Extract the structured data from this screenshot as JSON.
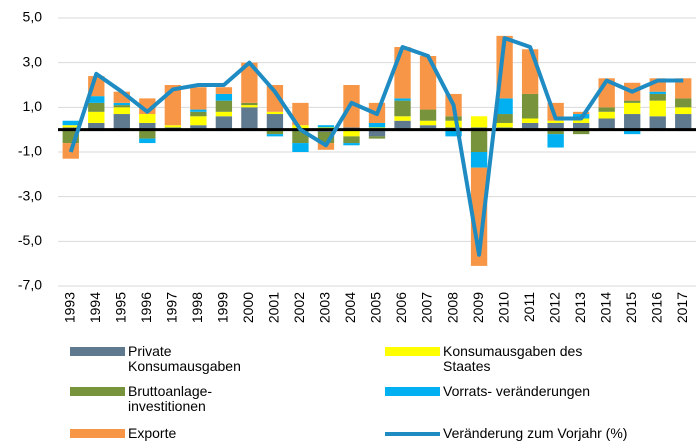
{
  "chart_data": {
    "type": "bar",
    "stacked": true,
    "categories": [
      "1993",
      "1994",
      "1995",
      "1996",
      "1997",
      "1998",
      "1999",
      "2000",
      "2001",
      "2002",
      "2003",
      "2004",
      "2005",
      "2006",
      "2007",
      "2008",
      "2009",
      "2010",
      "2011",
      "2012",
      "2013",
      "2014",
      "2015",
      "2016",
      "2017"
    ],
    "ylim": [
      -7,
      5
    ],
    "yticks": [
      {
        "value": 5,
        "label": "5,0"
      },
      {
        "value": 3,
        "label": "3,0"
      },
      {
        "value": 1,
        "label": "1,0"
      },
      {
        "value": -1,
        "label": "-1,0"
      },
      {
        "value": -3,
        "label": "-3,0"
      },
      {
        "value": -5,
        "label": "-5,0"
      },
      {
        "value": -7,
        "label": "-7,0"
      }
    ],
    "grid": true,
    "series": [
      {
        "name": "Private Konsumausgaben",
        "color": "#5f7a8f",
        "values": [
          0.1,
          0.3,
          0.7,
          0.3,
          0.1,
          0.2,
          0.6,
          1.0,
          0.7,
          0.0,
          -0.1,
          0.1,
          -0.3,
          0.4,
          0.2,
          0.1,
          0.1,
          0.1,
          0.3,
          0.3,
          0.3,
          0.5,
          0.7,
          0.6,
          0.7
        ]
      },
      {
        "name": "Konsumausgaben des Staates",
        "color": "#ffff00",
        "values": [
          0.1,
          0.5,
          0.3,
          0.4,
          0.1,
          0.4,
          0.2,
          0.1,
          0.1,
          0.2,
          0.1,
          -0.3,
          0.1,
          0.2,
          0.2,
          0.3,
          0.5,
          0.2,
          0.2,
          0.1,
          0.2,
          0.3,
          0.5,
          0.7,
          0.3
        ]
      },
      {
        "name": "Bruttoanlage- investitionen",
        "color": "#77933c",
        "values": [
          -0.6,
          0.4,
          0.1,
          -0.4,
          0.0,
          0.2,
          0.5,
          0.1,
          -0.2,
          -0.6,
          -0.5,
          -0.3,
          -0.1,
          0.7,
          0.5,
          0.2,
          -1.0,
          0.4,
          1.1,
          -0.2,
          -0.2,
          0.2,
          0.1,
          0.3,
          0.4
        ]
      },
      {
        "name": "Vorrats- veränderungen",
        "color": "#00b0f0",
        "values": [
          0.2,
          0.3,
          0.1,
          -0.2,
          0.0,
          0.1,
          0.3,
          0.0,
          -0.1,
          -0.4,
          0.1,
          -0.1,
          0.2,
          0.1,
          0.0,
          -0.3,
          -0.7,
          0.7,
          0.0,
          -0.6,
          0.2,
          0.0,
          -0.2,
          0.1,
          0.0
        ]
      },
      {
        "name": "Exporte",
        "color": "#f79646",
        "values": [
          -0.7,
          0.9,
          0.5,
          0.7,
          1.8,
          1.0,
          0.3,
          1.8,
          1.2,
          1.0,
          -0.3,
          1.9,
          0.9,
          2.3,
          2.4,
          1.0,
          -4.4,
          2.8,
          2.0,
          0.8,
          0.1,
          1.3,
          0.8,
          0.6,
          0.9
        ]
      },
      {
        "name": "Veränderung zum Vorjahr (%)",
        "color": "#1e8bc3",
        "type": "line",
        "values": [
          -1.0,
          2.5,
          1.7,
          0.8,
          1.8,
          2.0,
          2.0,
          3.0,
          1.7,
          0.0,
          -0.7,
          1.2,
          0.7,
          3.7,
          3.3,
          1.1,
          -5.6,
          4.1,
          3.7,
          0.5,
          0.5,
          2.2,
          1.7,
          2.2,
          2.2
        ]
      }
    ]
  }
}
